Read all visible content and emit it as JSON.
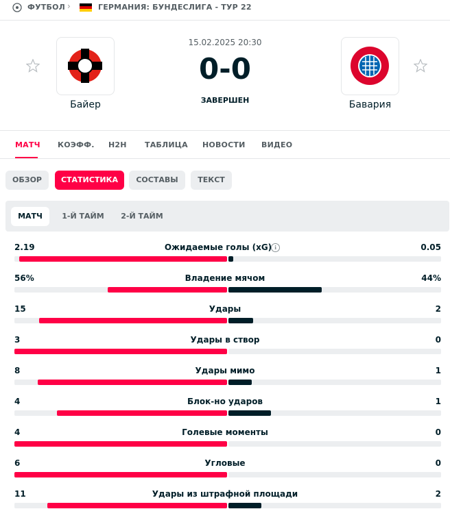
{
  "breadcrumb": {
    "sport": "ФУТБОЛ",
    "league": "ГЕРМАНИЯ: БУНДЕСЛИГА - ТУР 22"
  },
  "match": {
    "date": "15.02.2025 20:30",
    "score": "0-0",
    "status": "ЗАВЕРШЕН",
    "home": "Байер",
    "away": "Бавария"
  },
  "tabs": [
    "МАТЧ",
    "КОЭФФ.",
    "H2H",
    "ТАБЛИЦА",
    "НОВОСТИ",
    "ВИДЕО"
  ],
  "subtabs": [
    "ОБЗОР",
    "СТАТИСТИКА",
    "СОСТАВЫ",
    "ТЕКСТ"
  ],
  "period_tabs": [
    "МАТЧ",
    "1-Й ТАЙМ",
    "2-Й ТАЙМ"
  ],
  "stats": [
    {
      "name": "Ожидаемые голы (xG)",
      "home": "2.19",
      "away": "0.05"
    },
    {
      "name": "Владение мячом",
      "home": "56%",
      "away": "44%"
    },
    {
      "name": "Удары",
      "home": "15",
      "away": "2"
    },
    {
      "name": "Удары в створ",
      "home": "3",
      "away": "0"
    },
    {
      "name": "Удары мимо",
      "home": "8",
      "away": "1"
    },
    {
      "name": "Блок-но ударов",
      "home": "4",
      "away": "1"
    },
    {
      "name": "Голевые моменты",
      "home": "4",
      "away": "0"
    },
    {
      "name": "Угловые",
      "home": "6",
      "away": "0"
    },
    {
      "name": "Удары из штрафной площади",
      "home": "11",
      "away": "2"
    }
  ]
}
